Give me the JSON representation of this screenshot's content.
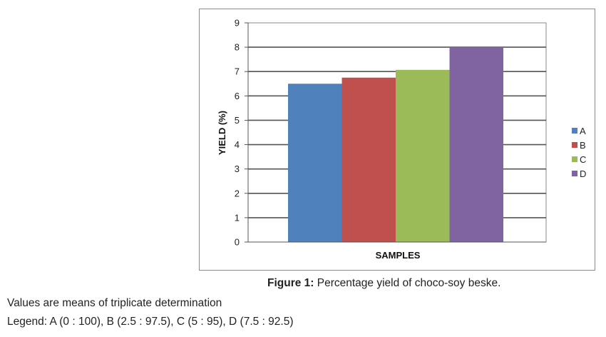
{
  "chart_data": {
    "type": "bar",
    "categories": [
      "A",
      "B",
      "C",
      "D"
    ],
    "values": [
      6.5,
      6.75,
      7.07,
      8.0
    ],
    "colors": [
      "#4f81bd",
      "#c0504d",
      "#9bbb59",
      "#8064a2"
    ],
    "xlabel": "SAMPLES",
    "ylabel": "YIELD (%)",
    "ylim": [
      0,
      9
    ],
    "yticks": [
      "0",
      "1",
      "2",
      "3",
      "4",
      "5",
      "6",
      "7",
      "8",
      "9"
    ],
    "grid": true,
    "legend": "right",
    "legend_entries": [
      "A",
      "B",
      "C",
      "D"
    ]
  },
  "caption": {
    "label": "Figure 1:",
    "text": " Percentage yield of choco-soy beske."
  },
  "notes": {
    "line1": "Values are means of triplicate determination",
    "line2": "Legend: A (0 : 100), B (2.5 : 97.5), C (5 : 95), D (7.5 : 92.5)"
  }
}
